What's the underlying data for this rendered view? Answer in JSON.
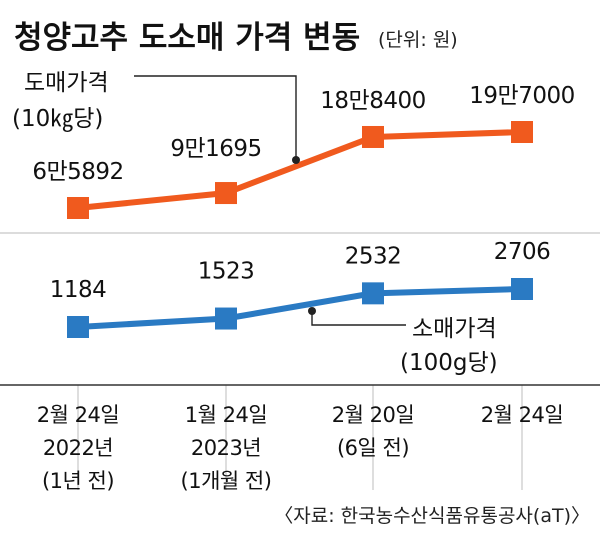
{
  "title": "청양고추 도소매 가격 변동",
  "unit_label": "(단위: 원)",
  "source": "〈자료: 한국농수산식품유통공사(aT)〉",
  "chart_data": [
    {
      "type": "line",
      "name": "wholesale",
      "label_lines": [
        "도매가격",
        "(10㎏당)"
      ],
      "color": "#f05a1e",
      "x_labels": [
        [
          "2월 24일",
          "2022년",
          "(1년 전)"
        ],
        [
          "1월 24일",
          "2023년",
          "(1개월 전)"
        ],
        [
          "2월 20일",
          "(6일 전)"
        ],
        [
          "2월 24일"
        ]
      ],
      "values": [
        65892,
        91695,
        188400,
        197000
      ],
      "value_labels": [
        "6만5892",
        "9만1695",
        "18만8400",
        "19만7000"
      ]
    },
    {
      "type": "line",
      "name": "retail",
      "label_lines": [
        "소매가격",
        "(100g당)"
      ],
      "color": "#2a7ac3",
      "x_labels": [
        [
          "2월 24일",
          "2022년",
          "(1년 전)"
        ],
        [
          "1월 24일",
          "2023년",
          "(1개월 전)"
        ],
        [
          "2월 20일",
          "(6일 전)"
        ],
        [
          "2월 24일"
        ]
      ],
      "values": [
        1184,
        1523,
        2532,
        2706
      ],
      "value_labels": [
        "1184",
        "1523",
        "2532",
        "2706"
      ]
    }
  ]
}
